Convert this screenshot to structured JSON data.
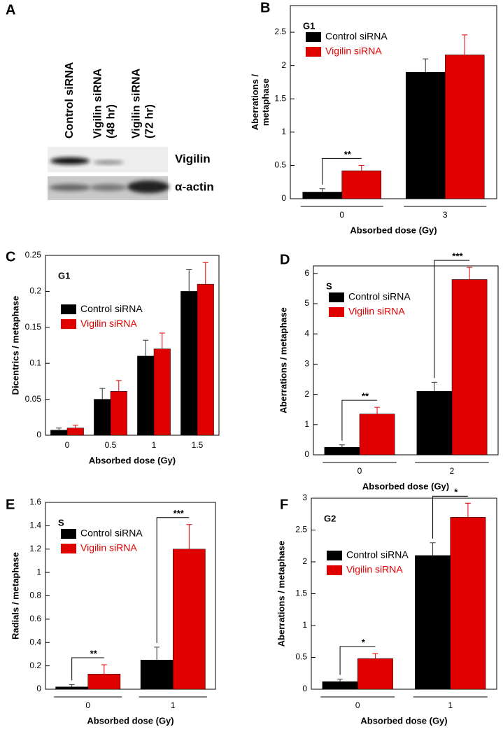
{
  "blot": {
    "panel": "A",
    "lanes": [
      [
        "Control siRNA"
      ],
      [
        "Vigilin siRNA",
        "(48 hr)"
      ],
      [
        "Vigilin siRNA",
        "(72 hr)"
      ]
    ],
    "bands": [
      "Vigilin",
      "α-actin"
    ]
  },
  "chart_data": [
    {
      "type": "bar",
      "panel": "B",
      "title": "G1",
      "xlabel": "Absorbed dose (Gy)",
      "ylabel": [
        "Aberrations /",
        "metaphase"
      ],
      "categories": [
        "0",
        "3"
      ],
      "series": [
        {
          "name": "Control siRNA",
          "color": "#000000",
          "values": [
            0.1,
            1.9
          ],
          "errors": [
            0.05,
            0.2
          ]
        },
        {
          "name": "Vigilin siRNA",
          "color": "#e00000",
          "values": [
            0.42,
            2.16
          ],
          "errors": [
            0.08,
            0.3
          ]
        }
      ],
      "significance": [
        "**",
        null
      ],
      "ylim": [
        0,
        2.9
      ],
      "yticks": [
        0,
        0.5,
        1,
        1.5,
        2,
        2.5
      ],
      "legend": "upper left",
      "x_group_lines": true
    },
    {
      "type": "bar",
      "panel": "C",
      "title": "G1",
      "xlabel": "Absorbed dose (Gy)",
      "ylabel": "Dicentrics / metaphase",
      "categories": [
        "0",
        "0.5",
        "1",
        "1.5"
      ],
      "series": [
        {
          "name": "Control siRNA",
          "color": "#000000",
          "values": [
            0.007,
            0.05,
            0.11,
            0.2
          ],
          "errors": [
            0.003,
            0.015,
            0.022,
            0.03
          ]
        },
        {
          "name": "Vigilin siRNA",
          "color": "#e00000",
          "values": [
            0.01,
            0.061,
            0.12,
            0.21
          ],
          "errors": [
            0.004,
            0.015,
            0.022,
            0.03
          ]
        }
      ],
      "ylim": [
        0,
        0.25
      ],
      "yticks": [
        0,
        0.05,
        0.1,
        0.15,
        0.2,
        0.25
      ],
      "legend": "center left",
      "x_group_lines": false
    },
    {
      "type": "bar",
      "panel": "D",
      "title": "S",
      "xlabel": "Absorbed dose (Gy)",
      "ylabel": "Aberrations / metaphase",
      "categories": [
        "0",
        "2"
      ],
      "series": [
        {
          "name": "Control siRNA",
          "color": "#000000",
          "values": [
            0.25,
            2.1
          ],
          "errors": [
            0.08,
            0.3
          ]
        },
        {
          "name": "Vigilin siRNA",
          "color": "#e00000",
          "values": [
            1.35,
            5.8
          ],
          "errors": [
            0.22,
            0.4
          ]
        }
      ],
      "significance": [
        "**",
        "***"
      ],
      "ylim": [
        0,
        6.25
      ],
      "yticks": [
        0,
        1,
        2,
        3,
        4,
        5,
        6
      ],
      "legend": "upper left",
      "x_group_lines": true
    },
    {
      "type": "bar",
      "panel": "E",
      "title": "S",
      "xlabel": "Absorbed dose (Gy)",
      "ylabel": "Radials / metaphase",
      "categories": [
        "0",
        "1"
      ],
      "series": [
        {
          "name": "Control siRNA",
          "color": "#000000",
          "values": [
            0.02,
            0.25
          ],
          "errors": [
            0.02,
            0.11
          ]
        },
        {
          "name": "Vigilin siRNA",
          "color": "#e00000",
          "values": [
            0.13,
            1.2
          ],
          "errors": [
            0.08,
            0.21
          ]
        }
      ],
      "significance": [
        "**",
        "***"
      ],
      "ylim": [
        0,
        1.6
      ],
      "yticks": [
        0,
        0.2,
        0.4,
        0.6,
        0.8,
        1,
        1.2,
        1.4,
        1.6
      ],
      "legend": "upper left",
      "x_group_lines": true
    },
    {
      "type": "bar",
      "panel": "F",
      "title": "G2",
      "xlabel": "Absorbed dose (Gy)",
      "ylabel": "Aberrations / metaphase",
      "categories": [
        "0",
        "1"
      ],
      "series": [
        {
          "name": "Control siRNA",
          "color": "#000000",
          "values": [
            0.12,
            2.1
          ],
          "errors": [
            0.04,
            0.2
          ]
        },
        {
          "name": "Vigilin siRNA",
          "color": "#e00000",
          "values": [
            0.48,
            2.7
          ],
          "errors": [
            0.08,
            0.22
          ]
        }
      ],
      "significance": [
        "*",
        "*"
      ],
      "ylim": [
        0,
        3
      ],
      "yticks": [
        0,
        0.5,
        1,
        1.5,
        2,
        2.5,
        3
      ],
      "legend": "center left",
      "x_group_lines": true
    }
  ]
}
